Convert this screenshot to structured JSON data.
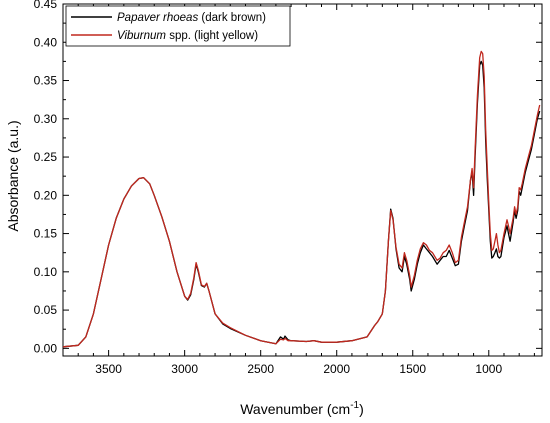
{
  "chart_data": {
    "type": "line",
    "title": "",
    "xlabel": {
      "main": "Wavenumber (cm",
      "sup": "-1",
      "end": ")"
    },
    "ylabel": "Absorbance (a.u.)",
    "xlim": [
      3800,
      650
    ],
    "ylim": [
      -0.01,
      0.45
    ],
    "x_reversed": true,
    "grid": false,
    "legend_position": "top-left",
    "x_ticks": [
      "3500",
      "3000",
      "2500",
      "2000",
      "1500",
      "1000"
    ],
    "y_ticks": [
      "0.00",
      "0.05",
      "0.10",
      "0.15",
      "0.20",
      "0.25",
      "0.30",
      "0.35",
      "0.40",
      "0.45"
    ],
    "series": [
      {
        "name_italic": "Papaver rhoeas",
        "name_rest": " (dark brown)",
        "color": "#000000",
        "points": [
          [
            3800,
            0.002
          ],
          [
            3700,
            0.004
          ],
          [
            3650,
            0.015
          ],
          [
            3600,
            0.045
          ],
          [
            3550,
            0.09
          ],
          [
            3500,
            0.135
          ],
          [
            3450,
            0.17
          ],
          [
            3400,
            0.195
          ],
          [
            3350,
            0.212
          ],
          [
            3300,
            0.222
          ],
          [
            3270,
            0.223
          ],
          [
            3230,
            0.215
          ],
          [
            3200,
            0.2
          ],
          [
            3150,
            0.172
          ],
          [
            3100,
            0.14
          ],
          [
            3050,
            0.1
          ],
          [
            3000,
            0.068
          ],
          [
            2980,
            0.063
          ],
          [
            2960,
            0.07
          ],
          [
            2940,
            0.09
          ],
          [
            2925,
            0.11
          ],
          [
            2910,
            0.1
          ],
          [
            2890,
            0.082
          ],
          [
            2870,
            0.08
          ],
          [
            2855,
            0.085
          ],
          [
            2840,
            0.075
          ],
          [
            2800,
            0.045
          ],
          [
            2750,
            0.032
          ],
          [
            2700,
            0.026
          ],
          [
            2600,
            0.017
          ],
          [
            2500,
            0.01
          ],
          [
            2400,
            0.006
          ],
          [
            2370,
            0.015
          ],
          [
            2350,
            0.012
          ],
          [
            2340,
            0.016
          ],
          [
            2320,
            0.011
          ],
          [
            2300,
            0.01
          ],
          [
            2200,
            0.009
          ],
          [
            2150,
            0.01
          ],
          [
            2100,
            0.008
          ],
          [
            2000,
            0.008
          ],
          [
            1900,
            0.01
          ],
          [
            1800,
            0.015
          ],
          [
            1750,
            0.03
          ],
          [
            1730,
            0.035
          ],
          [
            1700,
            0.045
          ],
          [
            1680,
            0.075
          ],
          [
            1660,
            0.14
          ],
          [
            1645,
            0.182
          ],
          [
            1630,
            0.17
          ],
          [
            1610,
            0.13
          ],
          [
            1590,
            0.105
          ],
          [
            1570,
            0.1
          ],
          [
            1555,
            0.12
          ],
          [
            1540,
            0.11
          ],
          [
            1520,
            0.09
          ],
          [
            1510,
            0.075
          ],
          [
            1490,
            0.09
          ],
          [
            1470,
            0.11
          ],
          [
            1450,
            0.125
          ],
          [
            1430,
            0.135
          ],
          [
            1410,
            0.13
          ],
          [
            1390,
            0.125
          ],
          [
            1370,
            0.12
          ],
          [
            1340,
            0.11
          ],
          [
            1320,
            0.115
          ],
          [
            1300,
            0.12
          ],
          [
            1280,
            0.12
          ],
          [
            1260,
            0.128
          ],
          [
            1240,
            0.118
          ],
          [
            1220,
            0.108
          ],
          [
            1200,
            0.11
          ],
          [
            1180,
            0.14
          ],
          [
            1160,
            0.16
          ],
          [
            1140,
            0.18
          ],
          [
            1120,
            0.22
          ],
          [
            1110,
            0.23
          ],
          [
            1100,
            0.2
          ],
          [
            1090,
            0.25
          ],
          [
            1075,
            0.32
          ],
          [
            1060,
            0.37
          ],
          [
            1050,
            0.375
          ],
          [
            1040,
            0.37
          ],
          [
            1030,
            0.34
          ],
          [
            1020,
            0.27
          ],
          [
            1010,
            0.22
          ],
          [
            1000,
            0.18
          ],
          [
            990,
            0.14
          ],
          [
            980,
            0.118
          ],
          [
            970,
            0.12
          ],
          [
            960,
            0.125
          ],
          [
            950,
            0.13
          ],
          [
            940,
            0.12
          ],
          [
            930,
            0.118
          ],
          [
            920,
            0.12
          ],
          [
            900,
            0.145
          ],
          [
            880,
            0.16
          ],
          [
            870,
            0.15
          ],
          [
            860,
            0.14
          ],
          [
            840,
            0.165
          ],
          [
            830,
            0.18
          ],
          [
            820,
            0.17
          ],
          [
            810,
            0.18
          ],
          [
            800,
            0.205
          ],
          [
            790,
            0.2
          ],
          [
            780,
            0.21
          ],
          [
            760,
            0.23
          ],
          [
            740,
            0.245
          ],
          [
            720,
            0.26
          ],
          [
            700,
            0.28
          ],
          [
            680,
            0.3
          ],
          [
            665,
            0.31
          ]
        ]
      },
      {
        "name_italic": "Viburnum",
        "name_rest": " spp. (light yellow)",
        "color": "#c0281e",
        "points": [
          [
            3800,
            0.002
          ],
          [
            3700,
            0.004
          ],
          [
            3650,
            0.015
          ],
          [
            3600,
            0.045
          ],
          [
            3550,
            0.09
          ],
          [
            3500,
            0.135
          ],
          [
            3450,
            0.17
          ],
          [
            3400,
            0.195
          ],
          [
            3350,
            0.212
          ],
          [
            3300,
            0.222
          ],
          [
            3270,
            0.223
          ],
          [
            3230,
            0.215
          ],
          [
            3200,
            0.2
          ],
          [
            3150,
            0.172
          ],
          [
            3100,
            0.14
          ],
          [
            3050,
            0.1
          ],
          [
            3000,
            0.068
          ],
          [
            2980,
            0.064
          ],
          [
            2960,
            0.072
          ],
          [
            2940,
            0.092
          ],
          [
            2925,
            0.112
          ],
          [
            2910,
            0.102
          ],
          [
            2890,
            0.083
          ],
          [
            2870,
            0.081
          ],
          [
            2855,
            0.085
          ],
          [
            2840,
            0.075
          ],
          [
            2800,
            0.045
          ],
          [
            2750,
            0.033
          ],
          [
            2700,
            0.027
          ],
          [
            2600,
            0.017
          ],
          [
            2500,
            0.01
          ],
          [
            2400,
            0.006
          ],
          [
            2370,
            0.012
          ],
          [
            2350,
            0.011
          ],
          [
            2340,
            0.013
          ],
          [
            2320,
            0.01
          ],
          [
            2300,
            0.01
          ],
          [
            2200,
            0.009
          ],
          [
            2150,
            0.01
          ],
          [
            2100,
            0.008
          ],
          [
            2000,
            0.008
          ],
          [
            1900,
            0.01
          ],
          [
            1800,
            0.015
          ],
          [
            1750,
            0.03
          ],
          [
            1730,
            0.035
          ],
          [
            1700,
            0.045
          ],
          [
            1680,
            0.075
          ],
          [
            1660,
            0.14
          ],
          [
            1645,
            0.18
          ],
          [
            1630,
            0.168
          ],
          [
            1610,
            0.132
          ],
          [
            1590,
            0.11
          ],
          [
            1570,
            0.105
          ],
          [
            1555,
            0.125
          ],
          [
            1540,
            0.115
          ],
          [
            1520,
            0.095
          ],
          [
            1510,
            0.08
          ],
          [
            1490,
            0.095
          ],
          [
            1470,
            0.115
          ],
          [
            1450,
            0.13
          ],
          [
            1430,
            0.138
          ],
          [
            1410,
            0.135
          ],
          [
            1390,
            0.128
          ],
          [
            1370,
            0.125
          ],
          [
            1340,
            0.115
          ],
          [
            1320,
            0.118
          ],
          [
            1300,
            0.125
          ],
          [
            1280,
            0.128
          ],
          [
            1260,
            0.135
          ],
          [
            1240,
            0.125
          ],
          [
            1220,
            0.112
          ],
          [
            1200,
            0.115
          ],
          [
            1180,
            0.145
          ],
          [
            1160,
            0.165
          ],
          [
            1140,
            0.185
          ],
          [
            1120,
            0.22
          ],
          [
            1110,
            0.235
          ],
          [
            1100,
            0.21
          ],
          [
            1090,
            0.26
          ],
          [
            1075,
            0.33
          ],
          [
            1060,
            0.38
          ],
          [
            1050,
            0.388
          ],
          [
            1040,
            0.385
          ],
          [
            1030,
            0.355
          ],
          [
            1020,
            0.285
          ],
          [
            1010,
            0.235
          ],
          [
            1000,
            0.19
          ],
          [
            990,
            0.15
          ],
          [
            980,
            0.128
          ],
          [
            970,
            0.13
          ],
          [
            960,
            0.14
          ],
          [
            950,
            0.15
          ],
          [
            940,
            0.135
          ],
          [
            930,
            0.125
          ],
          [
            920,
            0.128
          ],
          [
            900,
            0.15
          ],
          [
            880,
            0.168
          ],
          [
            870,
            0.16
          ],
          [
            860,
            0.15
          ],
          [
            840,
            0.17
          ],
          [
            830,
            0.185
          ],
          [
            820,
            0.175
          ],
          [
            810,
            0.185
          ],
          [
            800,
            0.21
          ],
          [
            790,
            0.207
          ],
          [
            780,
            0.215
          ],
          [
            760,
            0.235
          ],
          [
            740,
            0.25
          ],
          [
            720,
            0.265
          ],
          [
            700,
            0.285
          ],
          [
            680,
            0.305
          ],
          [
            665,
            0.318
          ]
        ]
      }
    ]
  }
}
